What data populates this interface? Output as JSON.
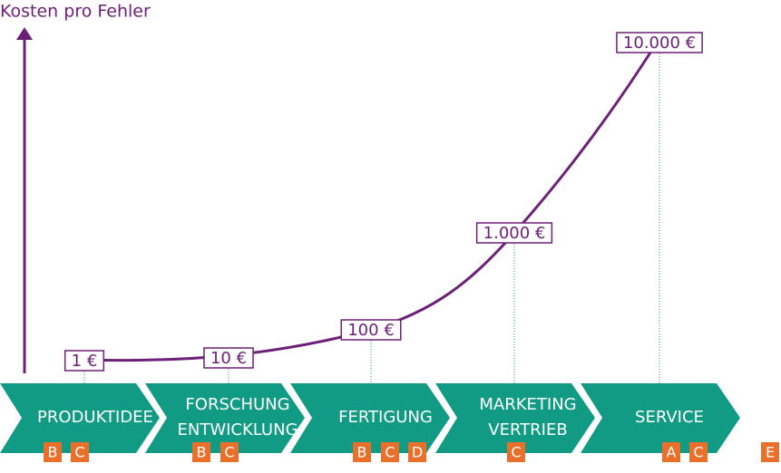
{
  "title": "Kosten pro Fehler",
  "steps": [
    {
      "label": [
        "PRODUKTIDEE"
      ],
      "badges": [
        "B",
        "C"
      ],
      "cost": "1 €"
    },
    {
      "label": [
        "FORSCHUNG",
        "ENTWICKLUNG"
      ],
      "badges": [
        "B",
        "C"
      ],
      "cost": "10 €"
    },
    {
      "label": [
        "FERTIGUNG"
      ],
      "badges": [
        "B",
        "C",
        "D"
      ],
      "cost": "100 €"
    },
    {
      "label": [
        "MARKETING",
        "VERTRIEB"
      ],
      "badges": [
        "C"
      ],
      "cost": "1.000 €"
    },
    {
      "label": [
        "SERVICE"
      ],
      "badges": [
        "A",
        "C"
      ],
      "cost": "10.000 €"
    }
  ],
  "extra_badge": "E"
}
